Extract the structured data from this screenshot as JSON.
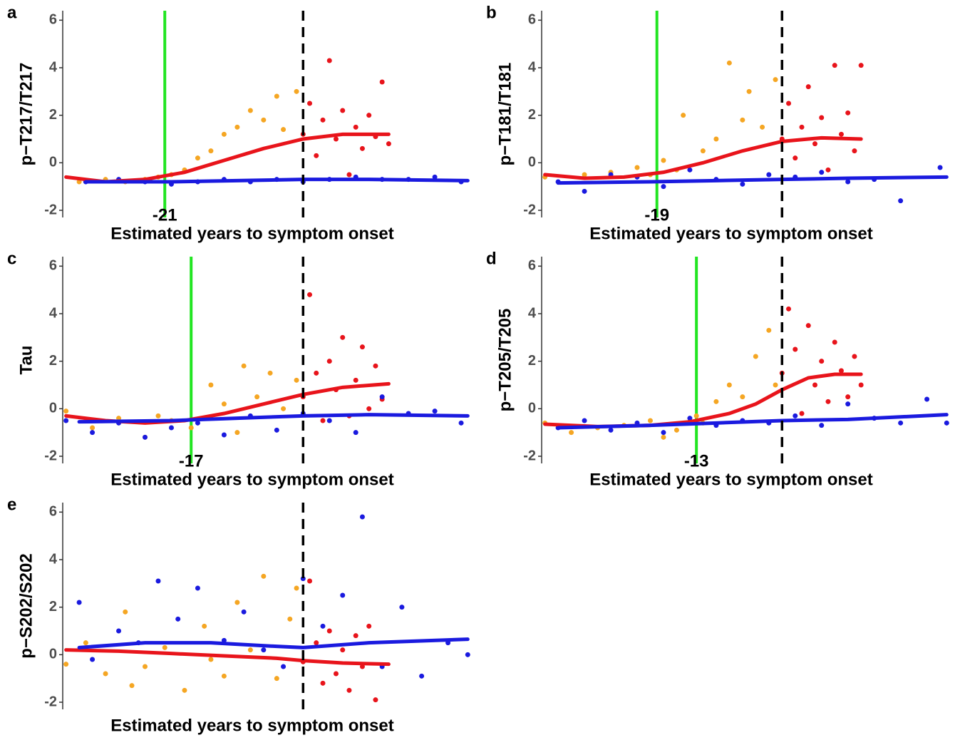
{
  "chart_data": [
    {
      "panel": "a",
      "type": "scatter",
      "ylabel": "p−T217/T217",
      "xlabel": "Estimated years to symptom onset",
      "xlim": [
        -36.5,
        25.4
      ],
      "ylim": [
        -2.3,
        6.4
      ],
      "yticks": [
        -2,
        0,
        2,
        4,
        6
      ],
      "vline": 0,
      "green_line": -21,
      "series": [
        {
          "color": "#f5a623",
          "mode": "markers",
          "x": [
            -34,
            -30,
            -27,
            -24,
            -22,
            -20,
            -18,
            -16,
            -14,
            -12,
            -10,
            -8,
            -6,
            -4,
            -3,
            -1
          ],
          "values": [
            -0.8,
            -0.7,
            -0.8,
            -0.7,
            -0.6,
            -0.5,
            -0.3,
            0.2,
            0.5,
            1.2,
            1.5,
            2.2,
            1.8,
            2.8,
            1.4,
            3.0
          ]
        },
        {
          "color": "#e8141b",
          "mode": "markers",
          "x": [
            0,
            1,
            2,
            3,
            4,
            5,
            6,
            7,
            8,
            9,
            10,
            11,
            12,
            13
          ],
          "values": [
            1.2,
            2.5,
            0.3,
            1.8,
            4.3,
            1.0,
            2.2,
            -0.5,
            1.5,
            0.6,
            2.0,
            1.1,
            3.4,
            0.8
          ]
        },
        {
          "color": "#1a1adf",
          "mode": "markers",
          "x": [
            -33,
            -28,
            -24,
            -20,
            -16,
            -12,
            -8,
            -4,
            0,
            4,
            8,
            12,
            16,
            20,
            24
          ],
          "values": [
            -0.8,
            -0.7,
            -0.8,
            -0.9,
            -0.8,
            -0.7,
            -0.8,
            -0.7,
            -0.8,
            -0.7,
            -0.6,
            -0.7,
            -0.7,
            -0.6,
            -0.8
          ]
        },
        {
          "color": "#e8141b",
          "mode": "line",
          "x": [
            -36,
            -30,
            -24,
            -18,
            -12,
            -6,
            0,
            6,
            13
          ],
          "values": [
            -0.6,
            -0.8,
            -0.7,
            -0.4,
            0.1,
            0.6,
            1.0,
            1.2,
            1.2
          ]
        },
        {
          "color": "#1a1adf",
          "mode": "line",
          "x": [
            -33,
            -20,
            -10,
            0,
            10,
            25
          ],
          "values": [
            -0.8,
            -0.8,
            -0.75,
            -0.7,
            -0.7,
            -0.75
          ]
        }
      ]
    },
    {
      "panel": "b",
      "type": "scatter",
      "ylabel": "p−T181/T181",
      "xlabel": "Estimated years to symptom onset",
      "xlim": [
        -36.5,
        25.4
      ],
      "ylim": [
        -2.3,
        6.4
      ],
      "yticks": [
        -2,
        0,
        2,
        4,
        6
      ],
      "vline": 0,
      "green_line": -19,
      "series": [
        {
          "color": "#f5a623",
          "mode": "markers",
          "x": [
            -36,
            -30,
            -26,
            -22,
            -20,
            -18,
            -15,
            -12,
            -10,
            -8,
            -5,
            -3,
            -1,
            -16,
            -6
          ],
          "values": [
            -0.6,
            -0.5,
            -0.4,
            -0.2,
            -0.5,
            0.1,
            2.0,
            0.5,
            1.0,
            4.2,
            3.0,
            1.5,
            3.5,
            -0.3,
            1.8
          ]
        },
        {
          "color": "#e8141b",
          "mode": "markers",
          "x": [
            0,
            1,
            2,
            3,
            4,
            5,
            6,
            7,
            8,
            9,
            10,
            11,
            12
          ],
          "values": [
            1.0,
            2.5,
            0.2,
            1.5,
            3.2,
            0.8,
            1.9,
            -0.3,
            4.1,
            1.2,
            2.1,
            0.5,
            4.1
          ]
        },
        {
          "color": "#1a1adf",
          "mode": "markers",
          "x": [
            -34,
            -30,
            -26,
            -22,
            -18,
            -14,
            -10,
            -6,
            -2,
            2,
            6,
            10,
            14,
            18,
            24
          ],
          "values": [
            -0.8,
            -1.2,
            -0.5,
            -0.6,
            -1.0,
            -0.3,
            -0.7,
            -0.9,
            -0.5,
            -0.6,
            -0.4,
            -0.8,
            -0.7,
            -1.6,
            -0.2
          ]
        },
        {
          "color": "#e8141b",
          "mode": "line",
          "x": [
            -36,
            -30,
            -24,
            -18,
            -12,
            -6,
            0,
            6,
            12
          ],
          "values": [
            -0.5,
            -0.65,
            -0.6,
            -0.4,
            0.0,
            0.5,
            0.9,
            1.05,
            1.0
          ]
        },
        {
          "color": "#1a1adf",
          "mode": "line",
          "x": [
            -34,
            -20,
            -10,
            0,
            10,
            25
          ],
          "values": [
            -0.85,
            -0.8,
            -0.75,
            -0.7,
            -0.65,
            -0.6
          ]
        }
      ]
    },
    {
      "panel": "c",
      "type": "scatter",
      "ylabel": "Tau",
      "xlabel": "Estimated years to symptom onset",
      "xlim": [
        -36.5,
        25.4
      ],
      "ylim": [
        -2.3,
        6.4
      ],
      "yticks": [
        -2,
        0,
        2,
        4,
        6
      ],
      "vline": 0,
      "green_line": -17,
      "series": [
        {
          "color": "#f5a623",
          "mode": "markers",
          "x": [
            -36,
            -32,
            -28,
            -24,
            -20,
            -17,
            -14,
            -12,
            -9,
            -7,
            -5,
            -3,
            -1,
            -22,
            -10
          ],
          "values": [
            -0.1,
            -0.8,
            -0.4,
            -1.2,
            -0.5,
            -0.8,
            1.0,
            0.2,
            1.8,
            0.5,
            1.5,
            0.0,
            1.2,
            -0.3,
            -1.0
          ]
        },
        {
          "color": "#e8141b",
          "mode": "markers",
          "x": [
            0,
            1,
            2,
            3,
            4,
            5,
            6,
            7,
            8,
            9,
            10,
            11,
            12
          ],
          "values": [
            0.5,
            4.8,
            1.5,
            -0.5,
            2.0,
            0.8,
            3.0,
            -0.3,
            1.2,
            2.6,
            0.0,
            1.8,
            0.4
          ]
        },
        {
          "color": "#1a1adf",
          "mode": "markers",
          "x": [
            -36,
            -32,
            -28,
            -24,
            -20,
            -16,
            -12,
            -8,
            -4,
            0,
            4,
            8,
            12,
            16,
            20,
            24
          ],
          "values": [
            -0.5,
            -1.0,
            -0.6,
            -1.2,
            -0.8,
            -0.6,
            -1.1,
            -0.3,
            -0.9,
            -0.2,
            -0.5,
            -1.0,
            0.5,
            -0.2,
            -0.1,
            -0.6
          ]
        },
        {
          "color": "#e8141b",
          "mode": "line",
          "x": [
            -36,
            -30,
            -24,
            -18,
            -12,
            -6,
            0,
            6,
            13
          ],
          "values": [
            -0.3,
            -0.5,
            -0.6,
            -0.5,
            -0.2,
            0.2,
            0.6,
            0.9,
            1.05
          ]
        },
        {
          "color": "#1a1adf",
          "mode": "line",
          "x": [
            -34,
            -20,
            -10,
            0,
            10,
            25
          ],
          "values": [
            -0.55,
            -0.5,
            -0.4,
            -0.3,
            -0.25,
            -0.3
          ]
        }
      ]
    },
    {
      "panel": "d",
      "type": "scatter",
      "ylabel": "p−T205/T205",
      "xlabel": "Estimated years to symptom onset",
      "xlim": [
        -36.5,
        25.4
      ],
      "ylim": [
        -2.3,
        6.4
      ],
      "yticks": [
        -2,
        0,
        2,
        4,
        6
      ],
      "vline": 0,
      "green_line": -13,
      "series": [
        {
          "color": "#f5a623",
          "mode": "markers",
          "x": [
            -36,
            -32,
            -28,
            -24,
            -20,
            -16,
            -13,
            -10,
            -8,
            -6,
            -4,
            -2,
            -1,
            -18,
            -12
          ],
          "values": [
            -0.6,
            -1.0,
            -0.8,
            -0.7,
            -0.5,
            -0.9,
            -0.3,
            0.3,
            1.0,
            0.5,
            2.2,
            3.3,
            1.0,
            -1.2,
            -0.6
          ]
        },
        {
          "color": "#e8141b",
          "mode": "markers",
          "x": [
            0,
            1,
            2,
            3,
            4,
            5,
            6,
            7,
            8,
            9,
            10,
            11,
            12
          ],
          "values": [
            1.5,
            4.2,
            2.5,
            -0.2,
            3.5,
            1.0,
            2.0,
            0.3,
            2.8,
            1.6,
            0.5,
            2.2,
            1.0
          ]
        },
        {
          "color": "#1a1adf",
          "mode": "markers",
          "x": [
            -34,
            -30,
            -26,
            -22,
            -18,
            -14,
            -10,
            -6,
            -2,
            2,
            6,
            10,
            14,
            18,
            22,
            25
          ],
          "values": [
            -0.8,
            -0.5,
            -0.9,
            -0.6,
            -1.0,
            -0.4,
            -0.7,
            -0.5,
            -0.6,
            -0.3,
            -0.7,
            0.2,
            -0.4,
            -0.6,
            0.4,
            -0.6
          ]
        },
        {
          "color": "#e8141b",
          "mode": "line",
          "x": [
            -36,
            -28,
            -20,
            -14,
            -8,
            -4,
            0,
            4,
            8,
            12
          ],
          "values": [
            -0.65,
            -0.75,
            -0.7,
            -0.55,
            -0.2,
            0.2,
            0.8,
            1.3,
            1.45,
            1.45
          ]
        },
        {
          "color": "#1a1adf",
          "mode": "line",
          "x": [
            -34,
            -20,
            -10,
            0,
            10,
            25
          ],
          "values": [
            -0.8,
            -0.7,
            -0.6,
            -0.5,
            -0.45,
            -0.25
          ]
        }
      ]
    },
    {
      "panel": "e",
      "type": "scatter",
      "ylabel": "p−S202/S202",
      "xlabel": "Estimated years to symptom onset",
      "xlim": [
        -36.5,
        25.4
      ],
      "ylim": [
        -2.3,
        6.4
      ],
      "yticks": [
        -2,
        0,
        2,
        4,
        6
      ],
      "vline": 0,
      "series": [
        {
          "color": "#f5a623",
          "mode": "markers",
          "x": [
            -36,
            -33,
            -30,
            -27,
            -24,
            -21,
            -18,
            -15,
            -12,
            -10,
            -8,
            -6,
            -4,
            -2,
            -1,
            -26,
            -14
          ],
          "values": [
            -0.4,
            0.5,
            -0.8,
            1.8,
            -0.5,
            0.3,
            -1.5,
            1.2,
            -0.9,
            2.2,
            0.2,
            3.3,
            -1.0,
            1.5,
            2.8,
            -1.3,
            -0.2
          ]
        },
        {
          "color": "#e8141b",
          "mode": "markers",
          "x": [
            0,
            1,
            2,
            3,
            4,
            5,
            6,
            7,
            8,
            9,
            10,
            11
          ],
          "values": [
            -0.3,
            3.1,
            0.5,
            -1.2,
            1.0,
            -0.8,
            0.2,
            -1.5,
            0.8,
            -0.5,
            1.2,
            -1.9
          ]
        },
        {
          "color": "#1a1adf",
          "mode": "markers",
          "x": [
            -34,
            -32,
            -28,
            -25,
            -22,
            -19,
            -16,
            -12,
            -9,
            -6,
            -3,
            0,
            3,
            6,
            9,
            12,
            15,
            18,
            22,
            25
          ],
          "values": [
            2.2,
            -0.2,
            1.0,
            0.5,
            3.1,
            1.5,
            2.8,
            0.6,
            1.8,
            0.2,
            -0.5,
            3.2,
            1.2,
            2.5,
            5.8,
            -0.5,
            2.0,
            -0.9,
            0.5,
            0.0
          ]
        },
        {
          "color": "#e8141b",
          "mode": "line",
          "x": [
            -36,
            -28,
            -20,
            -12,
            -4,
            0,
            6,
            13
          ],
          "values": [
            0.2,
            0.15,
            0.05,
            -0.05,
            -0.15,
            -0.25,
            -0.35,
            -0.4
          ]
        },
        {
          "color": "#1a1adf",
          "mode": "line",
          "x": [
            -34,
            -24,
            -14,
            -4,
            0,
            10,
            25
          ],
          "values": [
            0.3,
            0.5,
            0.5,
            0.35,
            0.3,
            0.5,
            0.65
          ]
        }
      ]
    }
  ]
}
